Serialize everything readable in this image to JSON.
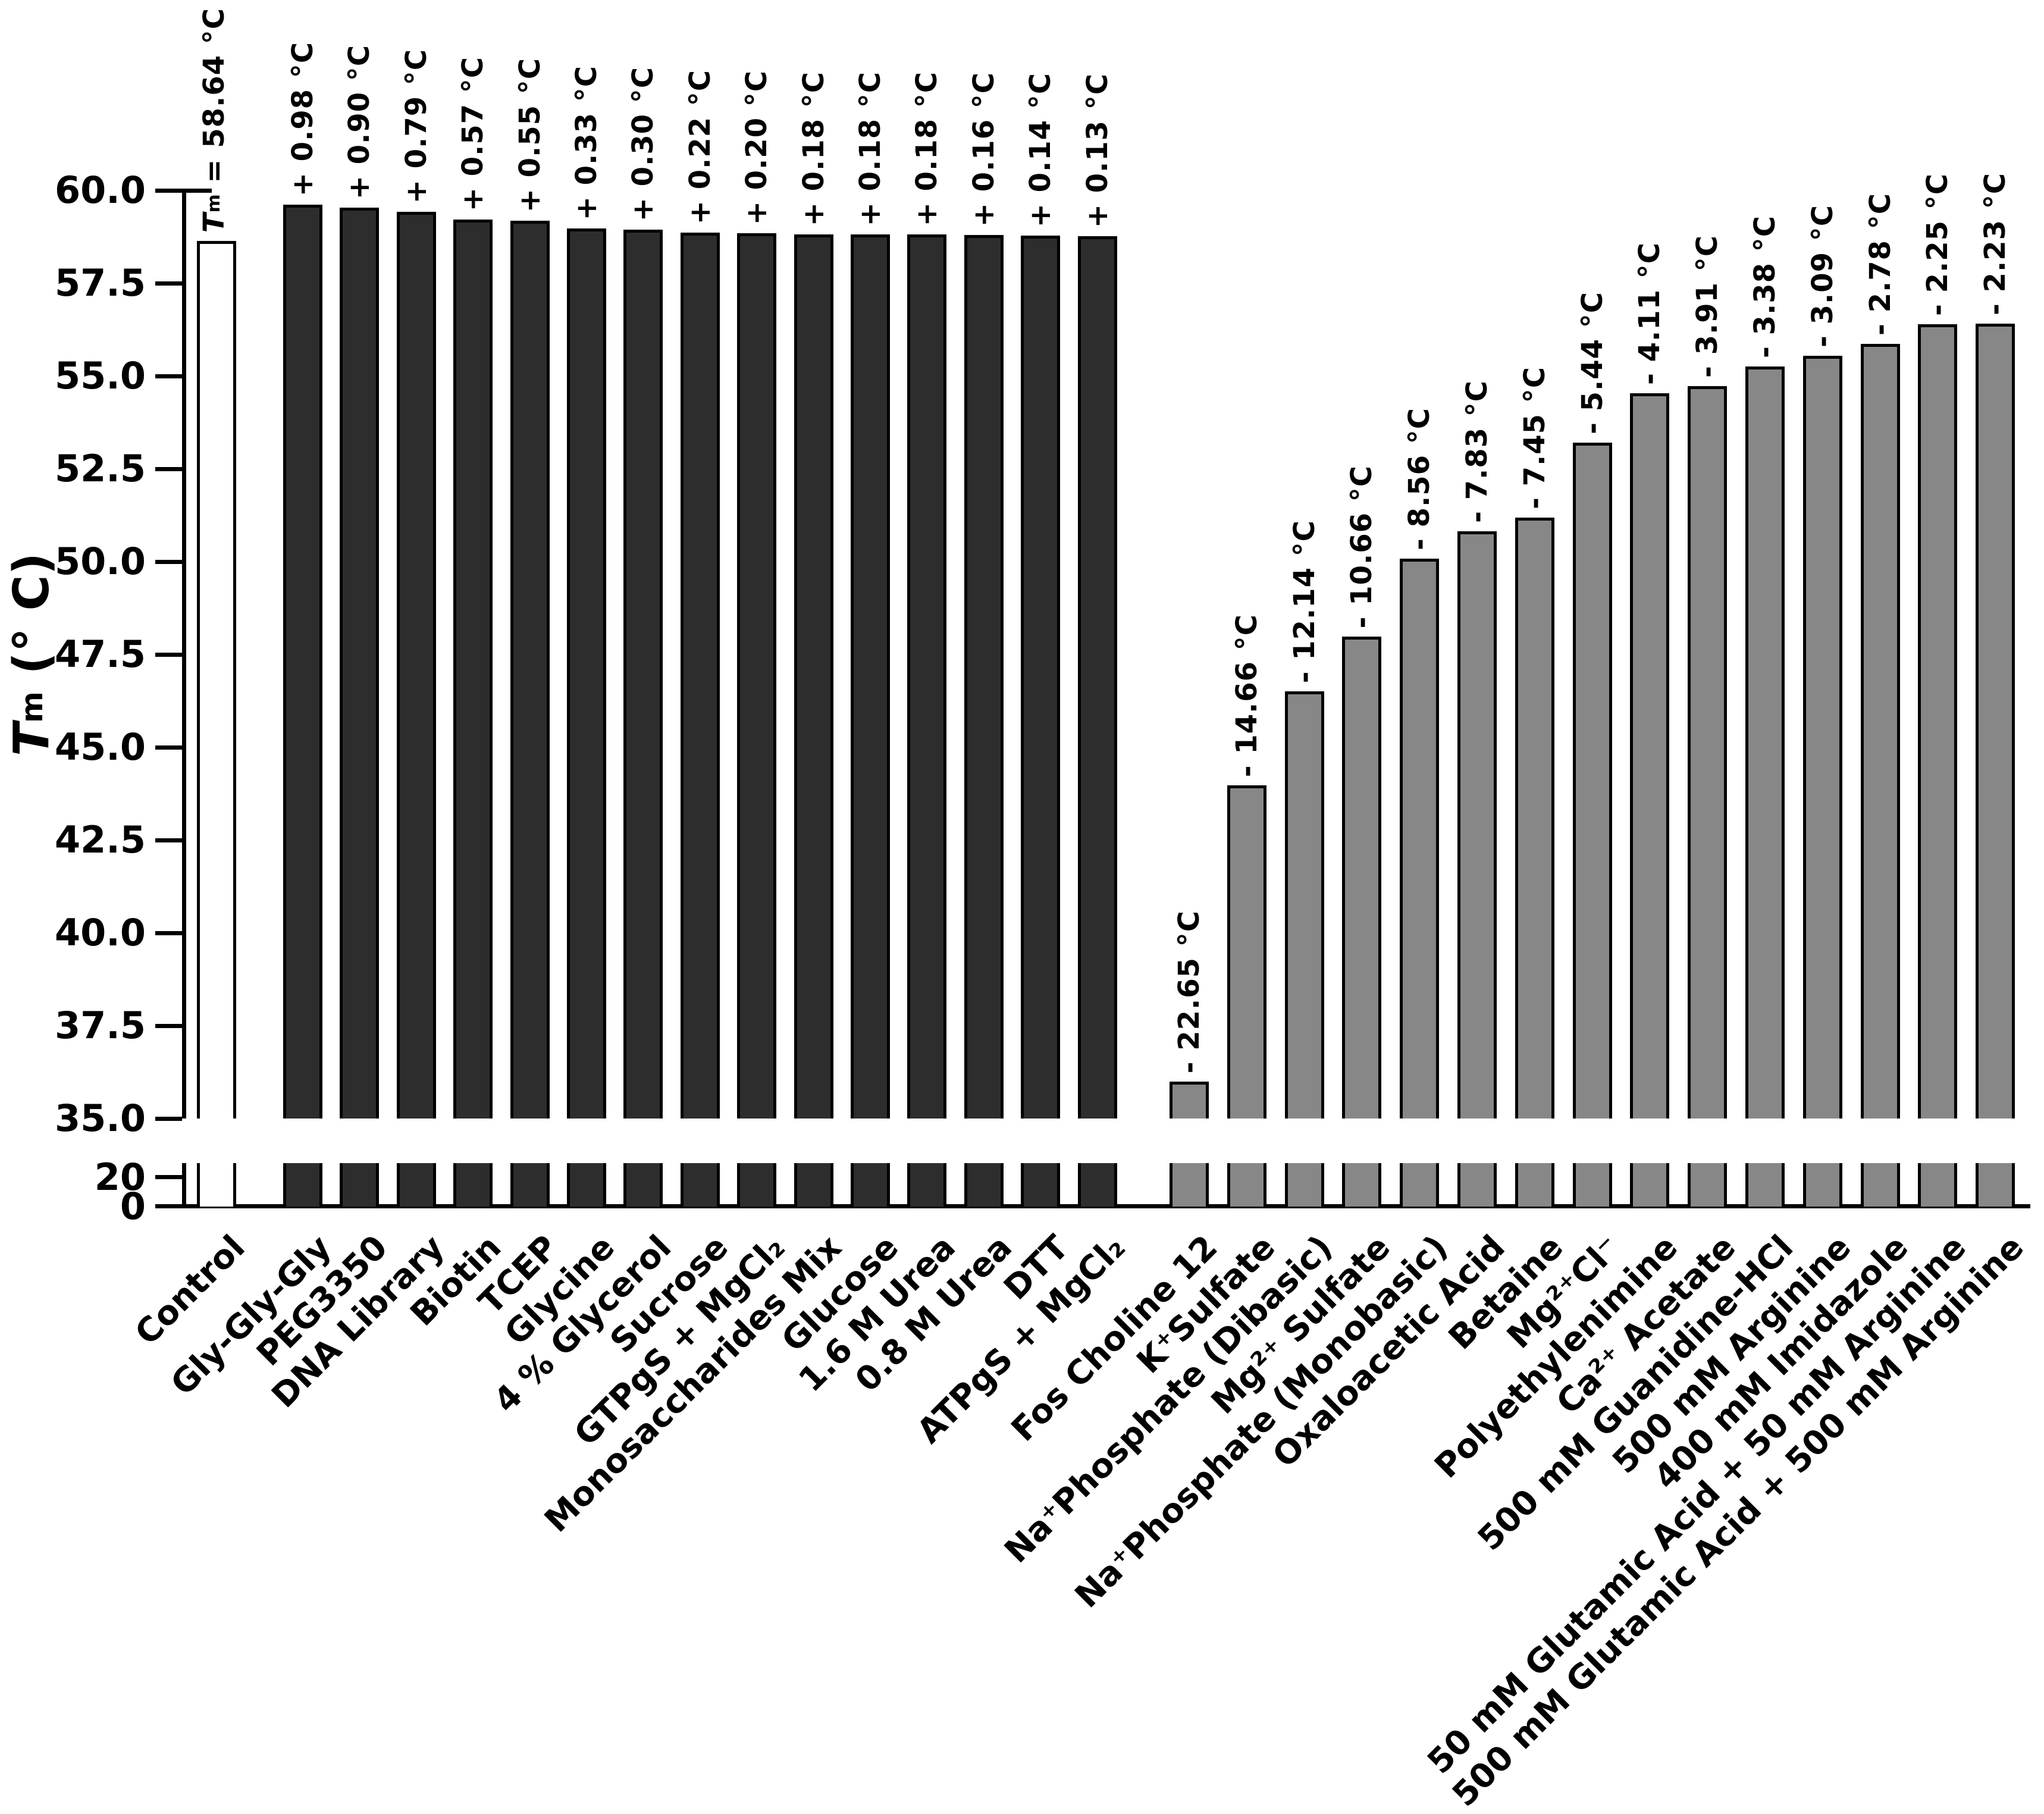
{
  "y_axis": {
    "label_symbol": "T",
    "label_subscript": "m",
    "label_units": " (° C)"
  },
  "control_annotation": {
    "symbol": "T",
    "subscript": "m",
    "equals_value": " = 58.64 °C"
  },
  "chart_data": {
    "type": "bar",
    "title": "",
    "xlabel": "",
    "ylabel": "Tm (° C)",
    "axis_break": true,
    "upper_ylim": [
      35.0,
      60.0
    ],
    "lower_ylim": [
      0,
      30
    ],
    "upper_yticks": [
      "60.0",
      "57.5",
      "55.0",
      "52.5",
      "50.0",
      "47.5",
      "45.0",
      "42.5",
      "40.0",
      "37.5",
      "35.0"
    ],
    "lower_yticks": [
      "20",
      "0"
    ],
    "grid": false,
    "legend": false,
    "bar_outline_color": "#000000",
    "control": {
      "category": "Control",
      "tm": 58.64,
      "annotation": "Tm = 58.64 °C",
      "fill": "#ffffff"
    },
    "series": [
      {
        "name": "stabilizing-additives",
        "color": "#2d2d2d",
        "categories": [
          "Gly-Gly-Gly",
          "PEG3350",
          "DNA Library",
          "Biotin",
          "TCEP",
          "Glycine",
          "4 % Glycerol",
          "Sucrose",
          "GTPgS + MgCl₂",
          "Monosaccharides Mix",
          "Glucose",
          "1.6 M Urea",
          "0.8 M Urea",
          "DTT",
          "ATPgS + MgCl₂"
        ],
        "tm_values": [
          59.62,
          59.54,
          59.43,
          59.21,
          59.19,
          58.97,
          58.94,
          58.86,
          58.84,
          58.82,
          58.82,
          58.82,
          58.8,
          58.78,
          58.77
        ],
        "delta_values": [
          0.98,
          0.9,
          0.79,
          0.57,
          0.55,
          0.33,
          0.3,
          0.22,
          0.2,
          0.18,
          0.18,
          0.18,
          0.16,
          0.14,
          0.13
        ],
        "delta_labels": [
          "+ 0.98 °C",
          "+ 0.90 °C",
          "+ 0.79 °C",
          "+ 0.57 °C",
          "+ 0.55 °C",
          "+ 0.33 °C",
          "+ 0.30 °C",
          "+ 0.22 °C",
          "+ 0.20 °C",
          "+ 0.18 °C",
          "+ 0.18 °C",
          "+ 0.18 °C",
          "+ 0.16 °C",
          "+ 0.14 °C",
          "+ 0.13 °C"
        ]
      },
      {
        "name": "destabilizing-additives",
        "color": "#878787",
        "categories": [
          "Fos Choline 12",
          "K⁺Sulfate",
          "Na⁺Phosphate (Dibasic)",
          "Mg²⁺ Sulfate",
          "Na⁺Phosphate (Monobasic)",
          "Oxaloacetic Acid",
          "Betaine",
          "Mg²⁺Cl⁻",
          "Polyethylenimine",
          "Ca²⁺ Acetate",
          "500 mM Guanidine-HCl",
          "500 mM Arginine",
          "400 mM Imidazole",
          "50 mM Glutamic Acid + 50 mM Arginine",
          "500 mM Glutamic Acid + 500 mM Arginine"
        ],
        "tm_values": [
          35.99,
          43.98,
          46.5,
          47.98,
          50.08,
          50.81,
          51.19,
          53.2,
          54.53,
          54.73,
          55.26,
          55.55,
          55.86,
          56.39,
          56.41
        ],
        "delta_values": [
          -22.65,
          -14.66,
          -12.14,
          -10.66,
          -8.56,
          -7.83,
          -7.45,
          -5.44,
          -4.11,
          -3.91,
          -3.38,
          -3.09,
          -2.78,
          -2.25,
          -2.23
        ],
        "delta_labels": [
          "- 22.65 °C",
          "- 14.66 °C",
          "- 12.14 °C",
          "- 10.66 °C",
          "- 8.56 °C",
          "- 7.83 °C",
          "- 7.45 °C",
          "- 5.44 °C",
          "- 4.11 °C",
          "- 3.91 °C",
          "- 3.38 °C",
          "- 3.09 °C",
          "- 2.78 °C",
          "- 2.25 °C",
          "- 2.23 °C"
        ]
      }
    ]
  }
}
